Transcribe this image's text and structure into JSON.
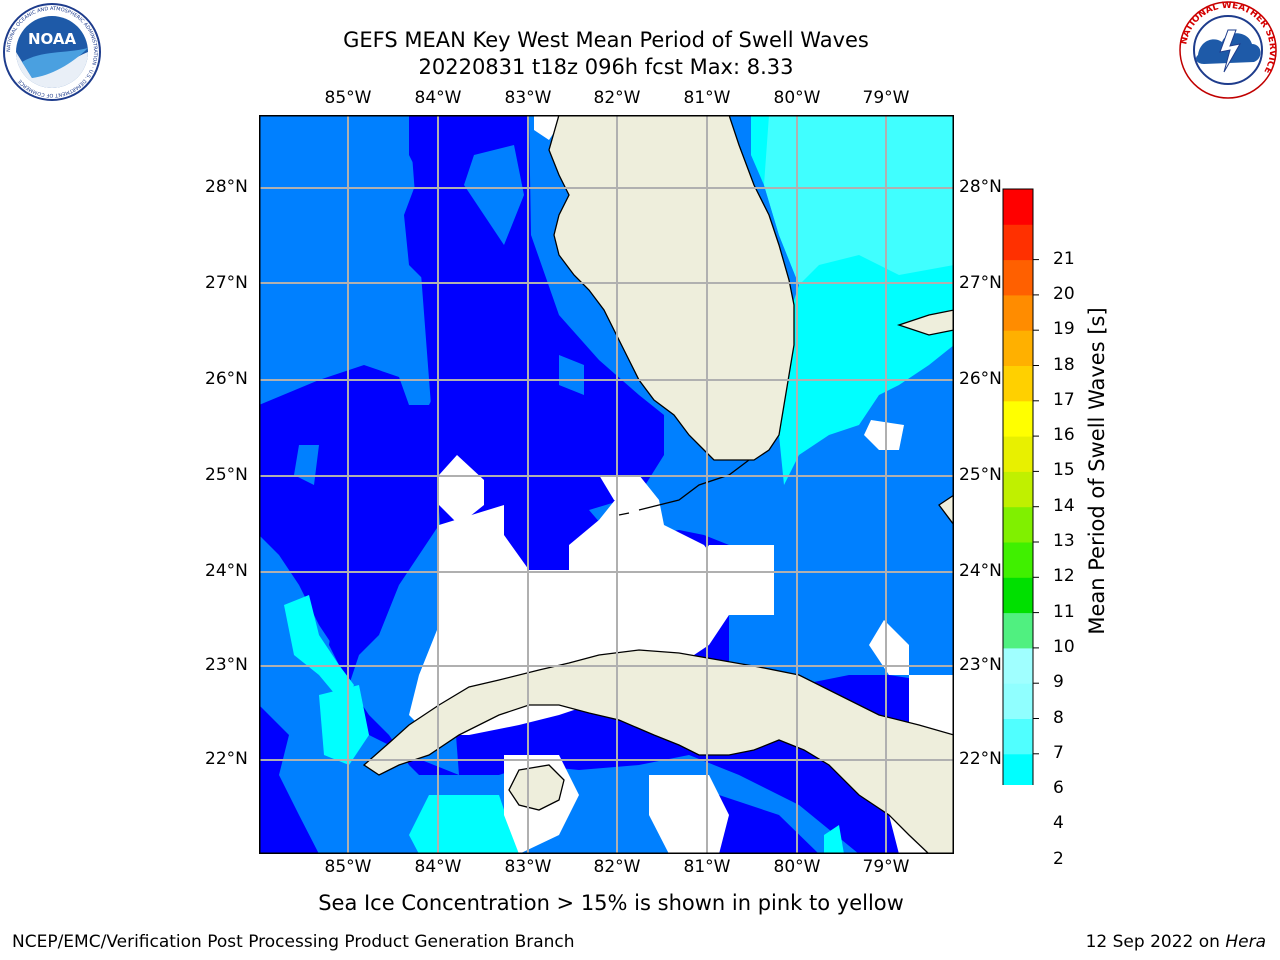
{
  "header": {
    "title_line1": "GEFS MEAN Key West Mean Period of Swell Waves",
    "title_line2": "20220831 t18z 096h fcst    Max: 8.33"
  },
  "logos": {
    "left": {
      "name": "NOAA",
      "text": "NOAA",
      "ring_text": "NATIONAL OCEANIC AND ATMOSPHERIC ADMINISTRATION · U.S. DEPARTMENT OF COMMERCE"
    },
    "right": {
      "name": "National Weather Service",
      "ring_text": "NATIONAL WEATHER SERVICE"
    }
  },
  "map": {
    "lon_labels": [
      "85°W",
      "84°W",
      "83°W",
      "82°W",
      "81°W",
      "80°W",
      "79°W"
    ],
    "lat_labels": [
      "28°N",
      "27°N",
      "26°N",
      "25°N",
      "24°N",
      "23°N",
      "22°N"
    ],
    "land_color": "#eeeedc",
    "ocean_colors": {
      "2-4": "#0000ff",
      "4-6": "#0080ff",
      "6-8": "#00ffff"
    }
  },
  "colorbar": {
    "title": "Mean Period of Swell Waves [s]",
    "ticks": [
      "2",
      "4",
      "6",
      "7",
      "8",
      "9",
      "10",
      "11",
      "12",
      "13",
      "14",
      "15",
      "16",
      "17",
      "18",
      "19",
      "20",
      "21"
    ],
    "colors": [
      "#0000ff",
      "#0080ff",
      "#00ffff",
      "#50ffff",
      "#90ffff",
      "#a0ffff",
      "#50f080",
      "#00e000",
      "#40f000",
      "#80f000",
      "#c0f000",
      "#e8f000",
      "#ffff00",
      "#ffd000",
      "#ffb000",
      "#ff8c00",
      "#ff6000",
      "#ff3000",
      "#ff0000"
    ],
    "extend_color": "#0000ff"
  },
  "footer": {
    "note": "Sea Ice Concentration > 15% is shown in pink to yellow",
    "left": "NCEP/EMC/Verification Post Processing Product Generation Branch",
    "right_date": "12 Sep 2022 on ",
    "right_host": "Hera"
  }
}
